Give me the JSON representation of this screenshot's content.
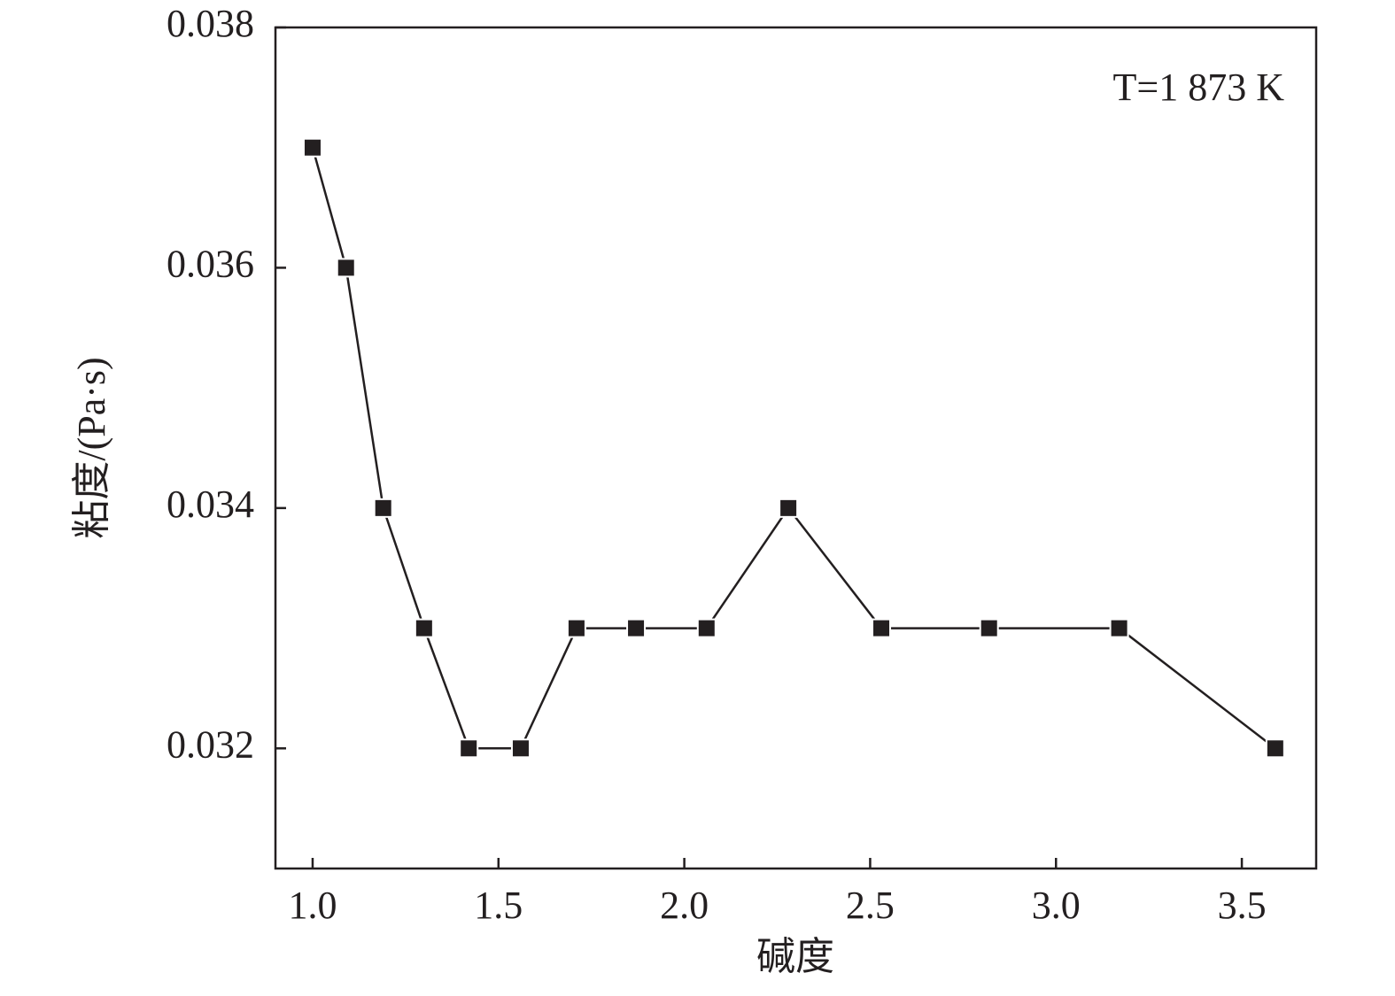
{
  "chart_data": {
    "type": "line",
    "x_label": "碱度",
    "y_label": "粘度/(Pa·s)",
    "annotation": "T=1 873 K",
    "x": [
      1.0,
      1.09,
      1.19,
      1.3,
      1.42,
      1.56,
      1.71,
      1.87,
      2.06,
      2.28,
      2.53,
      2.82,
      3.17,
      3.59
    ],
    "series": [
      {
        "color": "#231f20",
        "values": [
          0.037,
          0.036,
          0.034,
          0.033,
          0.032,
          0.032,
          0.033,
          0.033,
          0.033,
          0.034,
          0.033,
          0.033,
          0.033,
          0.032
        ]
      }
    ],
    "xlim": [
      0.9,
      3.7
    ],
    "ylim": [
      0.031,
      0.038
    ],
    "xticks": [
      {
        "value": 1,
        "label": "1.0"
      },
      {
        "value": 1.5,
        "label": "1.5"
      },
      {
        "value": 2,
        "label": "2.0"
      },
      {
        "value": 2.5,
        "label": "2.5"
      },
      {
        "value": 3,
        "label": "3.0"
      },
      {
        "value": 3.5,
        "label": "3.5"
      }
    ],
    "yticks": [
      0.032,
      0.034,
      0.036,
      0.038
    ]
  }
}
